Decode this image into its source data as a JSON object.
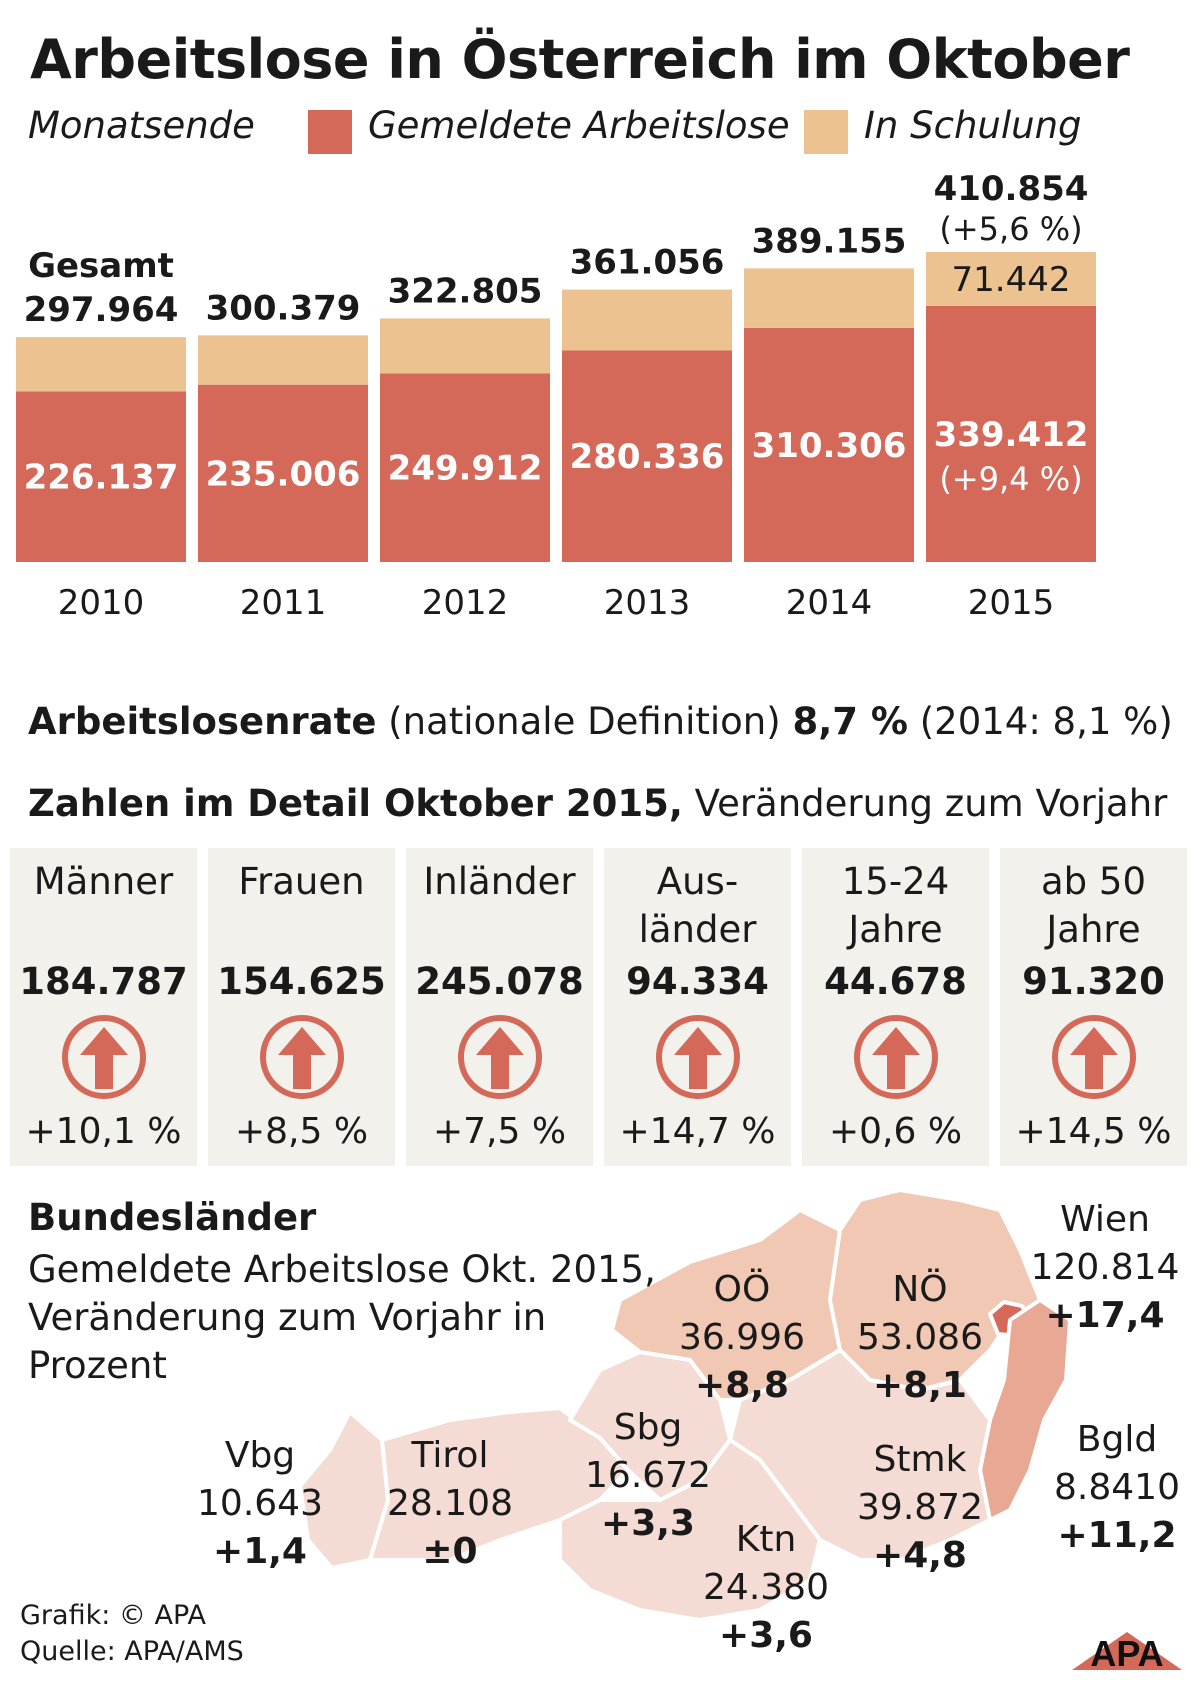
{
  "title": "Arbeitslose in Österreich im Oktober",
  "legend": {
    "period": "Monatsende",
    "registered": "Gemeldete Arbeitslose",
    "training": "In Schulung"
  },
  "colors": {
    "registered": "#d4695a",
    "training": "#ebc290",
    "arrow": "#d4695a",
    "map_light": "#f4dcd4",
    "map_mid": "#f0c8b4",
    "map_dark": "#e8a893",
    "map_wien": "#d4695a"
  },
  "chart_data": {
    "type": "bar",
    "stacked": true,
    "categories": [
      "2010",
      "2011",
      "2012",
      "2013",
      "2014",
      "2015"
    ],
    "series": [
      {
        "name": "Gemeldete Arbeitslose",
        "values": [
          226137,
          235006,
          249912,
          280336,
          310306,
          339412
        ]
      },
      {
        "name": "In Schulung",
        "values": [
          71827,
          65373,
          72893,
          80720,
          78849,
          71442
        ]
      }
    ],
    "totals": [
      297964,
      300379,
      322805,
      361056,
      389155,
      410854
    ],
    "labels": {
      "registered": [
        "226.137",
        "235.006",
        "249.912",
        "280.336",
        "310.306",
        "339.412"
      ],
      "totals": [
        "297.964",
        "300.379",
        "322.805",
        "361.056",
        "389.155",
        "410.854"
      ],
      "training_2015": "71.442",
      "total_label": "Gesamt",
      "total_change_2015": "(+5,6 %)",
      "registered_change_2015": "(+9,4 %)"
    },
    "ylim": [
      0,
      410854
    ]
  },
  "rate": {
    "label": "Arbeitslosenrate",
    "definition": " (nationale Definition) ",
    "value": "8,7 %",
    "previous": " (2014: 8,1 %)"
  },
  "detail": {
    "title": "Zahlen im Detail Oktober 2015,",
    "subtitle": " Veränderung zum Vorjahr",
    "cards": [
      {
        "label": "Männer",
        "value": "184.787",
        "change": "+10,1 %"
      },
      {
        "label": "Frauen",
        "value": "154.625",
        "change": "+8,5 %"
      },
      {
        "label": "Inländer",
        "value": "245.078",
        "change": "+7,5 %"
      },
      {
        "label": "Aus-\nländer",
        "value": "94.334",
        "change": "+14,7 %"
      },
      {
        "label": "15-24\nJahre",
        "value": "44.678",
        "change": "+0,6 %"
      },
      {
        "label": "ab 50\nJahre",
        "value": "91.320",
        "change": "+14,5 %"
      }
    ]
  },
  "states": {
    "title": "Bundesländer",
    "subtitle": "Gemeldete Arbeitslose Okt. 2015, Veränderung zum Vorjahr in Prozent",
    "regions": [
      {
        "name": "Vbg",
        "value": "10.643",
        "change": "+1,4"
      },
      {
        "name": "Tirol",
        "value": "28.108",
        "change": "±0"
      },
      {
        "name": "Sbg",
        "value": "16.672",
        "change": "+3,3"
      },
      {
        "name": "OÖ",
        "value": "36.996",
        "change": "+8,8"
      },
      {
        "name": "NÖ",
        "value": "53.086",
        "change": "+8,1"
      },
      {
        "name": "Wien",
        "value": "120.814",
        "change": "+17,4"
      },
      {
        "name": "Bgld",
        "value": "8.8410",
        "change": "+11,2"
      },
      {
        "name": "Stmk",
        "value": "39.872",
        "change": "+4,8"
      },
      {
        "name": "Ktn",
        "value": "24.380",
        "change": "+3,6"
      }
    ]
  },
  "footer": {
    "credit": "Grafik: © APA",
    "source": "Quelle: APA/AMS",
    "logo": "APA"
  }
}
